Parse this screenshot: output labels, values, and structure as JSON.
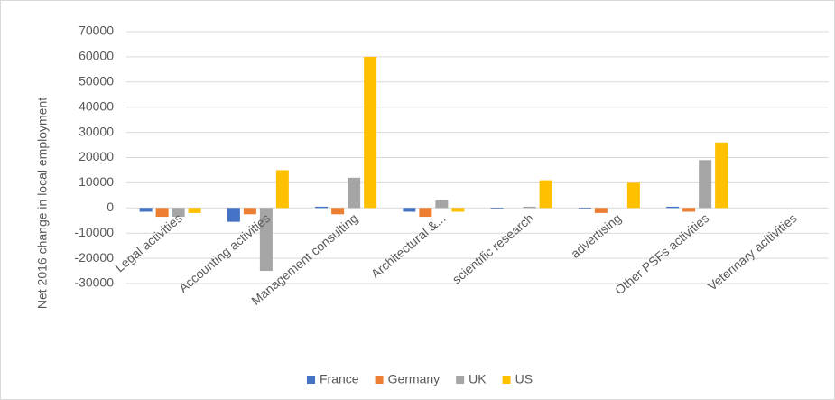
{
  "chart_data": {
    "type": "bar",
    "y_label": "Net 2016 change in local employment",
    "categories": [
      "Legal activities",
      "Accounting activities",
      "Management consulting",
      "Architectural &...",
      "scientific research",
      "advertising",
      "Other PSFs activities",
      "Veterinary acitivities"
    ],
    "series": [
      {
        "name": "France",
        "color": "#4472c4",
        "values": [
          -1500,
          -5500,
          500,
          -1500,
          -500,
          -500,
          500,
          0
        ]
      },
      {
        "name": "Germany",
        "color": "#ed7d31",
        "values": [
          -3500,
          -2500,
          -2500,
          -3500,
          0,
          -2000,
          -1500,
          0
        ]
      },
      {
        "name": "UK",
        "color": "#a5a5a5",
        "values": [
          -3500,
          -25000,
          12000,
          3000,
          500,
          0,
          19000,
          0
        ]
      },
      {
        "name": "US",
        "color": "#ffc000",
        "values": [
          -2000,
          15000,
          60000,
          -1500,
          11000,
          10000,
          26000,
          0
        ]
      }
    ],
    "ylim": [
      -30000,
      70000
    ],
    "yticks": [
      -30000,
      -20000,
      -10000,
      0,
      10000,
      20000,
      30000,
      40000,
      50000,
      60000,
      70000
    ],
    "grid": true,
    "legend": "bottom"
  }
}
